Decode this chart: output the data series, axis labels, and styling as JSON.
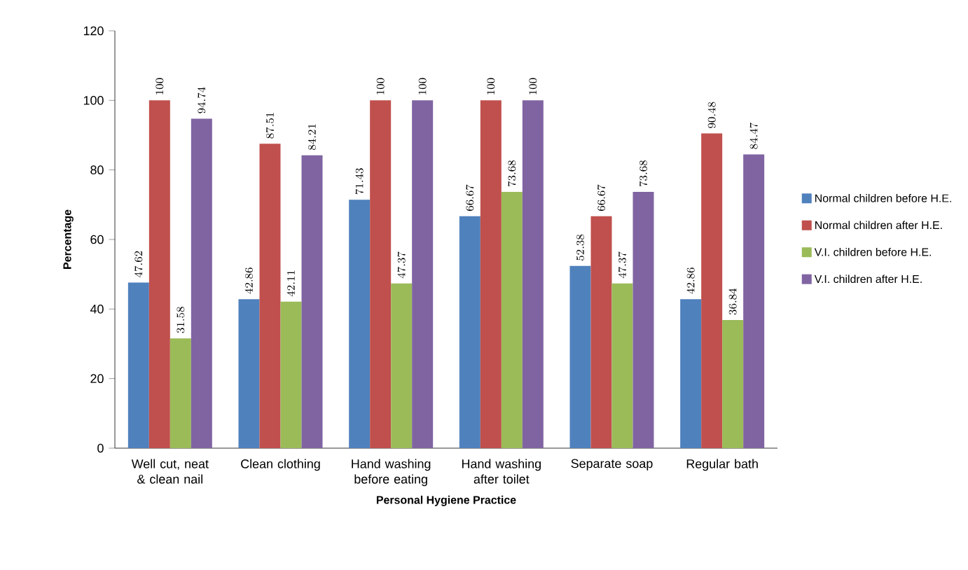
{
  "chart_data": {
    "type": "bar",
    "xlabel": "Personal Hygiene Practice",
    "ylabel": "Percentage",
    "categories": [
      "Well cut, neat & clean nail",
      "Clean clothing",
      "Hand washing before eating",
      "Hand washing after toilet",
      "Separate soap",
      "Regular bath"
    ],
    "series": [
      {
        "name": "Normal children before H.E.",
        "color": "#4f81bd",
        "values": [
          47.62,
          42.86,
          71.43,
          66.67,
          52.38,
          42.86
        ]
      },
      {
        "name": "Normal children after H.E.",
        "color": "#c0504d",
        "values": [
          100,
          87.51,
          100,
          100,
          66.67,
          90.48
        ]
      },
      {
        "name": "V.I. children before H.E.",
        "color": "#9bbb59",
        "values": [
          31.58,
          42.11,
          47.37,
          73.68,
          47.37,
          36.84
        ]
      },
      {
        "name": "V.I. children after H.E.",
        "color": "#8064a2",
        "values": [
          94.74,
          84.21,
          100,
          100,
          73.68,
          84.47
        ]
      }
    ],
    "ylim": [
      0,
      120
    ],
    "yticks": [
      0,
      20,
      40,
      60,
      80,
      100,
      120
    ],
    "legend": "right",
    "data_labels": true
  }
}
